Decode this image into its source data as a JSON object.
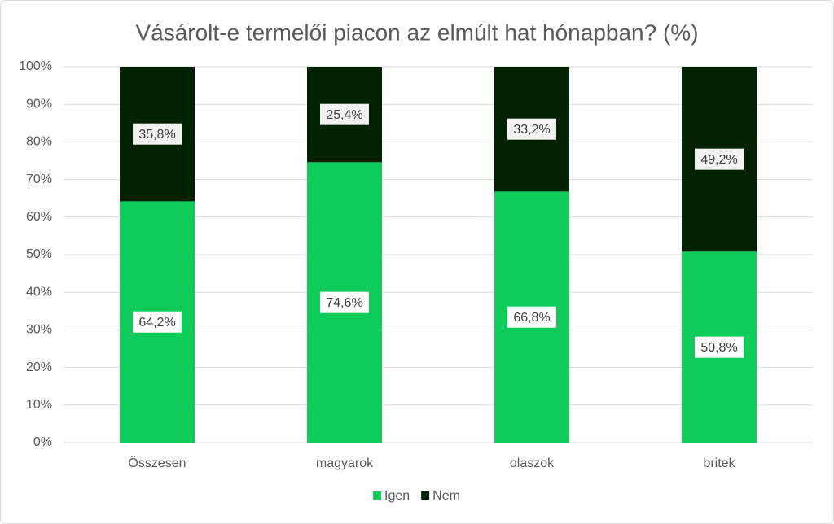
{
  "chart_data": {
    "type": "bar",
    "stacked": true,
    "title": "Vásárolt-e termelői piacon az elmúlt hat hónapban? (%)",
    "categories": [
      "Összesen",
      "magyarok",
      "olaszok",
      "britek"
    ],
    "series": [
      {
        "name": "Igen",
        "color": "#0fcc5a",
        "values": [
          64.2,
          74.6,
          66.8,
          50.8
        ],
        "value_labels": [
          "64,2%",
          "74,6%",
          "66,8%",
          "50,8%"
        ]
      },
      {
        "name": "Nem",
        "color": "#012100",
        "values": [
          35.8,
          25.4,
          33.2,
          49.2
        ],
        "value_labels": [
          "35,8%",
          "25,4%",
          "33,2%",
          "49,2%"
        ]
      }
    ],
    "ylim": [
      0,
      100
    ],
    "yticks": [
      {
        "value": 0,
        "label": "0%"
      },
      {
        "value": 10,
        "label": "10%"
      },
      {
        "value": 20,
        "label": "20%"
      },
      {
        "value": 30,
        "label": "30%"
      },
      {
        "value": 40,
        "label": "40%"
      },
      {
        "value": 50,
        "label": "50%"
      },
      {
        "value": 60,
        "label": "60%"
      },
      {
        "value": 70,
        "label": "70%"
      },
      {
        "value": 80,
        "label": "80%"
      },
      {
        "value": 90,
        "label": "90%"
      },
      {
        "value": 100,
        "label": "100%"
      }
    ],
    "grid": true,
    "legend": "bottom"
  }
}
